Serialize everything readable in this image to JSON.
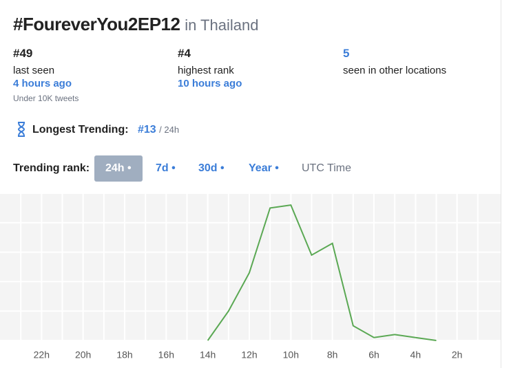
{
  "header": {
    "title": "#FoureverYou2EP12",
    "location": "in Thailand"
  },
  "stats": [
    {
      "value": "#49",
      "label": "last seen",
      "time": "4 hours ago",
      "note": "Under 10K tweets"
    },
    {
      "value": "#4",
      "label": "highest rank",
      "time": "10 hours ago"
    },
    {
      "value": "5",
      "label": "seen in other locations"
    }
  ],
  "longest_trending": {
    "label": "Longest Trending:",
    "rank": "#13",
    "period": "/ 24h"
  },
  "trending_rank": {
    "label": "Trending rank:",
    "tabs": [
      "24h •",
      "7d •",
      "30d •",
      "Year •"
    ],
    "active": 0,
    "utc": "UTC Time"
  },
  "chart_data": {
    "type": "line",
    "x": [
      14,
      13,
      12,
      11,
      10,
      9,
      8,
      7,
      6,
      5,
      4,
      3
    ],
    "values": [
      50,
      40,
      27,
      5,
      4,
      21,
      17,
      45,
      49,
      48,
      49,
      50
    ],
    "color": "#5aa853",
    "xlim": [
      24,
      0
    ],
    "xticks": [
      {
        "value": 22,
        "label": "22h"
      },
      {
        "value": 20,
        "label": "20h"
      },
      {
        "value": 18,
        "label": "18h"
      },
      {
        "value": 16,
        "label": "16h"
      },
      {
        "value": 14,
        "label": "14h"
      },
      {
        "value": 12,
        "label": "12h"
      },
      {
        "value": 10,
        "label": "10h"
      },
      {
        "value": 8,
        "label": "8h"
      },
      {
        "value": 6,
        "label": "6h"
      },
      {
        "value": 4,
        "label": "4h"
      },
      {
        "value": 2,
        "label": "2h"
      }
    ],
    "ylim": [
      50,
      0
    ],
    "yticks": [
      0,
      10,
      20,
      30,
      40,
      50
    ],
    "grid": true
  }
}
